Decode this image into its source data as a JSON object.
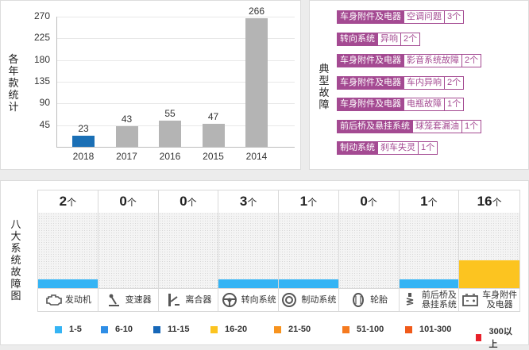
{
  "year_panel": {
    "title": "各年款统计",
    "y_ticks": [
      "270",
      "225",
      "180",
      "135",
      "90",
      "45"
    ]
  },
  "chart_data": {
    "type": "bar",
    "categories": [
      "2018",
      "2017",
      "2016",
      "2015",
      "2014"
    ],
    "values": [
      23,
      43,
      55,
      47,
      266
    ],
    "ylim": [
      0,
      270
    ],
    "colors": [
      "#1a6fb5",
      "#b4b4b4",
      "#b4b4b4",
      "#b4b4b4",
      "#b4b4b4"
    ]
  },
  "typical_panel": {
    "title": "典型故障",
    "faults": [
      {
        "system": "车身附件及电器",
        "desc": "空调问题",
        "count": "3个"
      },
      {
        "system": "转向系统",
        "desc": "异响",
        "count": "2个"
      },
      {
        "system": "车身附件及电器",
        "desc": "影音系统故障",
        "count": "2个"
      },
      {
        "system": "车身附件及电器",
        "desc": "车内异响",
        "count": "2个"
      },
      {
        "system": "车身附件及电器",
        "desc": "电瓶故障",
        "count": "1个"
      },
      {
        "system": "前后桥及悬挂系统",
        "desc": "球笼套漏油",
        "count": "1个"
      },
      {
        "system": "制动系统",
        "desc": "刹车失灵",
        "count": "1个"
      }
    ]
  },
  "systems_panel": {
    "title": "八大系统故障图",
    "unit": "个",
    "systems": [
      {
        "name": "发动机",
        "count": "2",
        "icon": "engine-icon",
        "level": "1-5"
      },
      {
        "name": "变速器",
        "count": "0",
        "icon": "gearbox-icon",
        "level": ""
      },
      {
        "name": "离合器",
        "count": "0",
        "icon": "clutch-icon",
        "level": ""
      },
      {
        "name": "转向系统",
        "count": "3",
        "icon": "steering-wheel-icon",
        "level": "1-5"
      },
      {
        "name": "制动系统",
        "count": "1",
        "icon": "brake-icon",
        "level": "1-5"
      },
      {
        "name": "轮胎",
        "count": "0",
        "icon": "tire-icon",
        "level": ""
      },
      {
        "name": "前后桥及\n悬挂系统",
        "count": "1",
        "icon": "suspension-icon",
        "level": "1-5"
      },
      {
        "name": "车身附件\n及电器",
        "count": "16",
        "icon": "battery-icon",
        "level": "16-20"
      }
    ],
    "fill_fraction": {
      "1-5": 0.13,
      "16-20": 0.37
    },
    "legend": [
      {
        "label": "1-5",
        "color": "#35b4f4"
      },
      {
        "label": "6-10",
        "color": "#2f8ee6"
      },
      {
        "label": "11-15",
        "color": "#1667b8"
      },
      {
        "label": "16-20",
        "color": "#fcc420"
      },
      {
        "label": "21-50",
        "color": "#f7931e"
      },
      {
        "label": "51-100",
        "color": "#f57a1f"
      },
      {
        "label": "101-300",
        "color": "#f05a1a"
      },
      {
        "label": "300以上",
        "color": "#e8202a"
      }
    ]
  }
}
